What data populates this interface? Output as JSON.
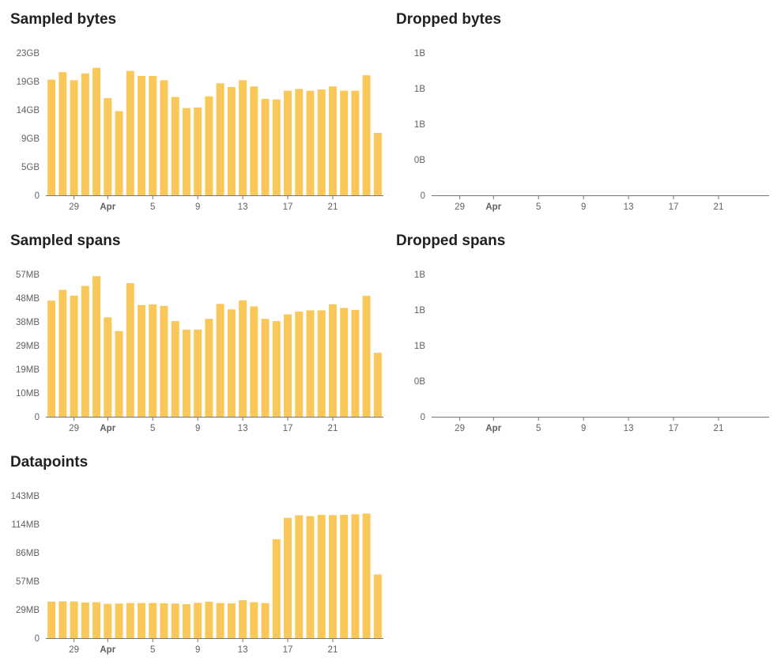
{
  "bar_color": "#fac858",
  "axis_color": "#757575",
  "charts": [
    {
      "id": "sampled-bytes",
      "title": "Sampled bytes",
      "type": "bar",
      "y_ticks": [
        "0",
        "5GB",
        "9GB",
        "14GB",
        "19GB",
        "23GB"
      ],
      "y_max": 23,
      "x_ticks": [
        "29",
        "Apr",
        "5",
        "9",
        "13",
        "17",
        "21"
      ],
      "values": [
        18.7,
        19.9,
        18.6,
        19.7,
        20.6,
        15.7,
        13.6,
        20.1,
        19.3,
        19.3,
        18.6,
        15.9,
        14.1,
        14.2,
        16.0,
        18.1,
        17.5,
        18.6,
        17.6,
        15.6,
        15.5,
        16.9,
        17.2,
        16.9,
        17.1,
        17.6,
        16.9,
        16.9,
        19.4,
        10.1
      ]
    },
    {
      "id": "dropped-bytes",
      "title": "Dropped bytes",
      "type": "bar",
      "y_ticks": [
        "0",
        "0B",
        "1B",
        "1B",
        "1B"
      ],
      "y_max": 1,
      "x_ticks": [
        "29",
        "Apr",
        "5",
        "9",
        "13",
        "17",
        "21"
      ],
      "values": []
    },
    {
      "id": "sampled-spans",
      "title": "Sampled spans",
      "type": "bar",
      "y_ticks": [
        "0",
        "10MB",
        "19MB",
        "29MB",
        "38MB",
        "48MB",
        "57MB"
      ],
      "y_max": 57,
      "x_ticks": [
        "29",
        "Apr",
        "5",
        "9",
        "13",
        "17",
        "21"
      ],
      "values": [
        46.5,
        50.8,
        48.5,
        52.4,
        56.3,
        39.8,
        34.3,
        53.5,
        44.7,
        45.0,
        44.4,
        38.3,
        34.9,
        34.9,
        39.2,
        45.2,
        43.0,
        46.6,
        44.2,
        39.2,
        38.3,
        41.0,
        42.1,
        42.6,
        42.6,
        45.0,
        43.6,
        42.8,
        48.4,
        25.6
      ]
    },
    {
      "id": "dropped-spans",
      "title": "Dropped spans",
      "type": "bar",
      "y_ticks": [
        "0",
        "0B",
        "1B",
        "1B",
        "1B"
      ],
      "y_max": 1,
      "x_ticks": [
        "29",
        "Apr",
        "5",
        "9",
        "13",
        "17",
        "21"
      ],
      "values": []
    },
    {
      "id": "datapoints",
      "title": "Datapoints",
      "type": "bar",
      "y_ticks": [
        "0",
        "29MB",
        "57MB",
        "86MB",
        "114MB",
        "143MB"
      ],
      "y_max": 143,
      "x_ticks": [
        "29",
        "Apr",
        "5",
        "9",
        "13",
        "17",
        "21"
      ],
      "values": [
        36.7,
        36.9,
        36.9,
        35.8,
        36.1,
        34.5,
        34.8,
        35.3,
        35.3,
        35.3,
        35.0,
        34.8,
        34.2,
        35.5,
        36.6,
        35.3,
        35.0,
        38.1,
        36.1,
        35.3,
        99.4,
        120.9,
        123.4,
        122.6,
        123.9,
        123.6,
        123.9,
        124.4,
        125.2,
        64.0
      ]
    }
  ]
}
